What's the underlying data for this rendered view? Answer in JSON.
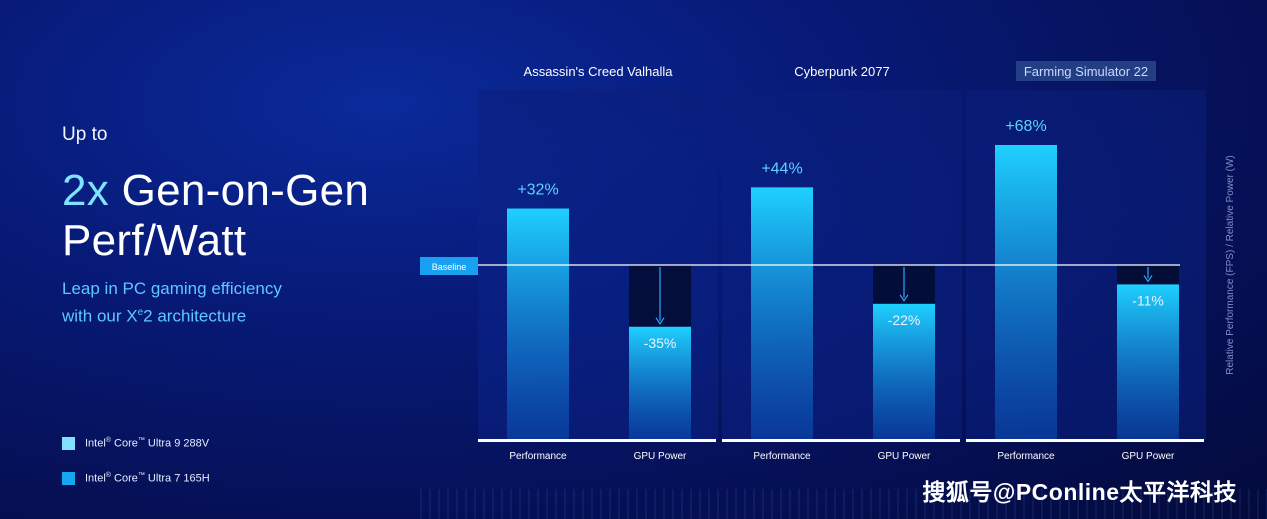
{
  "headline": {
    "up_to": "Up to",
    "highlight": "2x",
    "line1_rest": " Gen-on-Gen",
    "line2": "Perf/Watt",
    "sub1": "Leap in PC gaming efficiency",
    "sub2_pre": "with our X",
    "sub2_sup": "e",
    "sub2_post": "2 architecture"
  },
  "legend": [
    {
      "label_pre": "Intel",
      "label_mid": " Core",
      "label_post": " Ultra 9 288V",
      "color": "#7fe0ff"
    },
    {
      "label_pre": "Intel",
      "label_mid": " Core",
      "label_post": " Ultra 7 165H",
      "color": "#15a8f0"
    }
  ],
  "legend_marks": {
    "registered": "®",
    "tm": "™"
  },
  "watermark": "搜狐号@PConline太平洋科技",
  "chart_data": {
    "type": "bar",
    "baseline_label": "Baseline",
    "y_axis_label": "Relative Performance (FPS) / Relative Power (W)",
    "baseline_value": 0,
    "ylim": [
      -60,
      80
    ],
    "categories": [
      "Performance",
      "GPU Power"
    ],
    "groups": [
      {
        "title": "Assassin's Creed Valhalla",
        "highlighted": false,
        "bars": [
          {
            "category": "Performance",
            "value": 32,
            "label": "+32%"
          },
          {
            "category": "GPU Power",
            "value": -35,
            "label": "-35%"
          }
        ]
      },
      {
        "title": "Cyberpunk 2077",
        "highlighted": false,
        "bars": [
          {
            "category": "Performance",
            "value": 44,
            "label": "+44%"
          },
          {
            "category": "GPU Power",
            "value": -22,
            "label": "-22%"
          }
        ]
      },
      {
        "title": "Farming Simulator 22",
        "highlighted": true,
        "bars": [
          {
            "category": "Performance",
            "value": 68,
            "label": "+68%"
          },
          {
            "category": "GPU Power",
            "value": -11,
            "label": "-11%"
          }
        ]
      }
    ],
    "colors": {
      "bar_top": "#1fd0ff",
      "bar_bottom": "#0a4fb8",
      "power_gap": "#030a2a",
      "label": "#5cd2ff",
      "baseline_line": "#ffffff",
      "baseline_tag": "#1aa0f0",
      "title_highlight_bg": "#2a4a8c"
    }
  }
}
